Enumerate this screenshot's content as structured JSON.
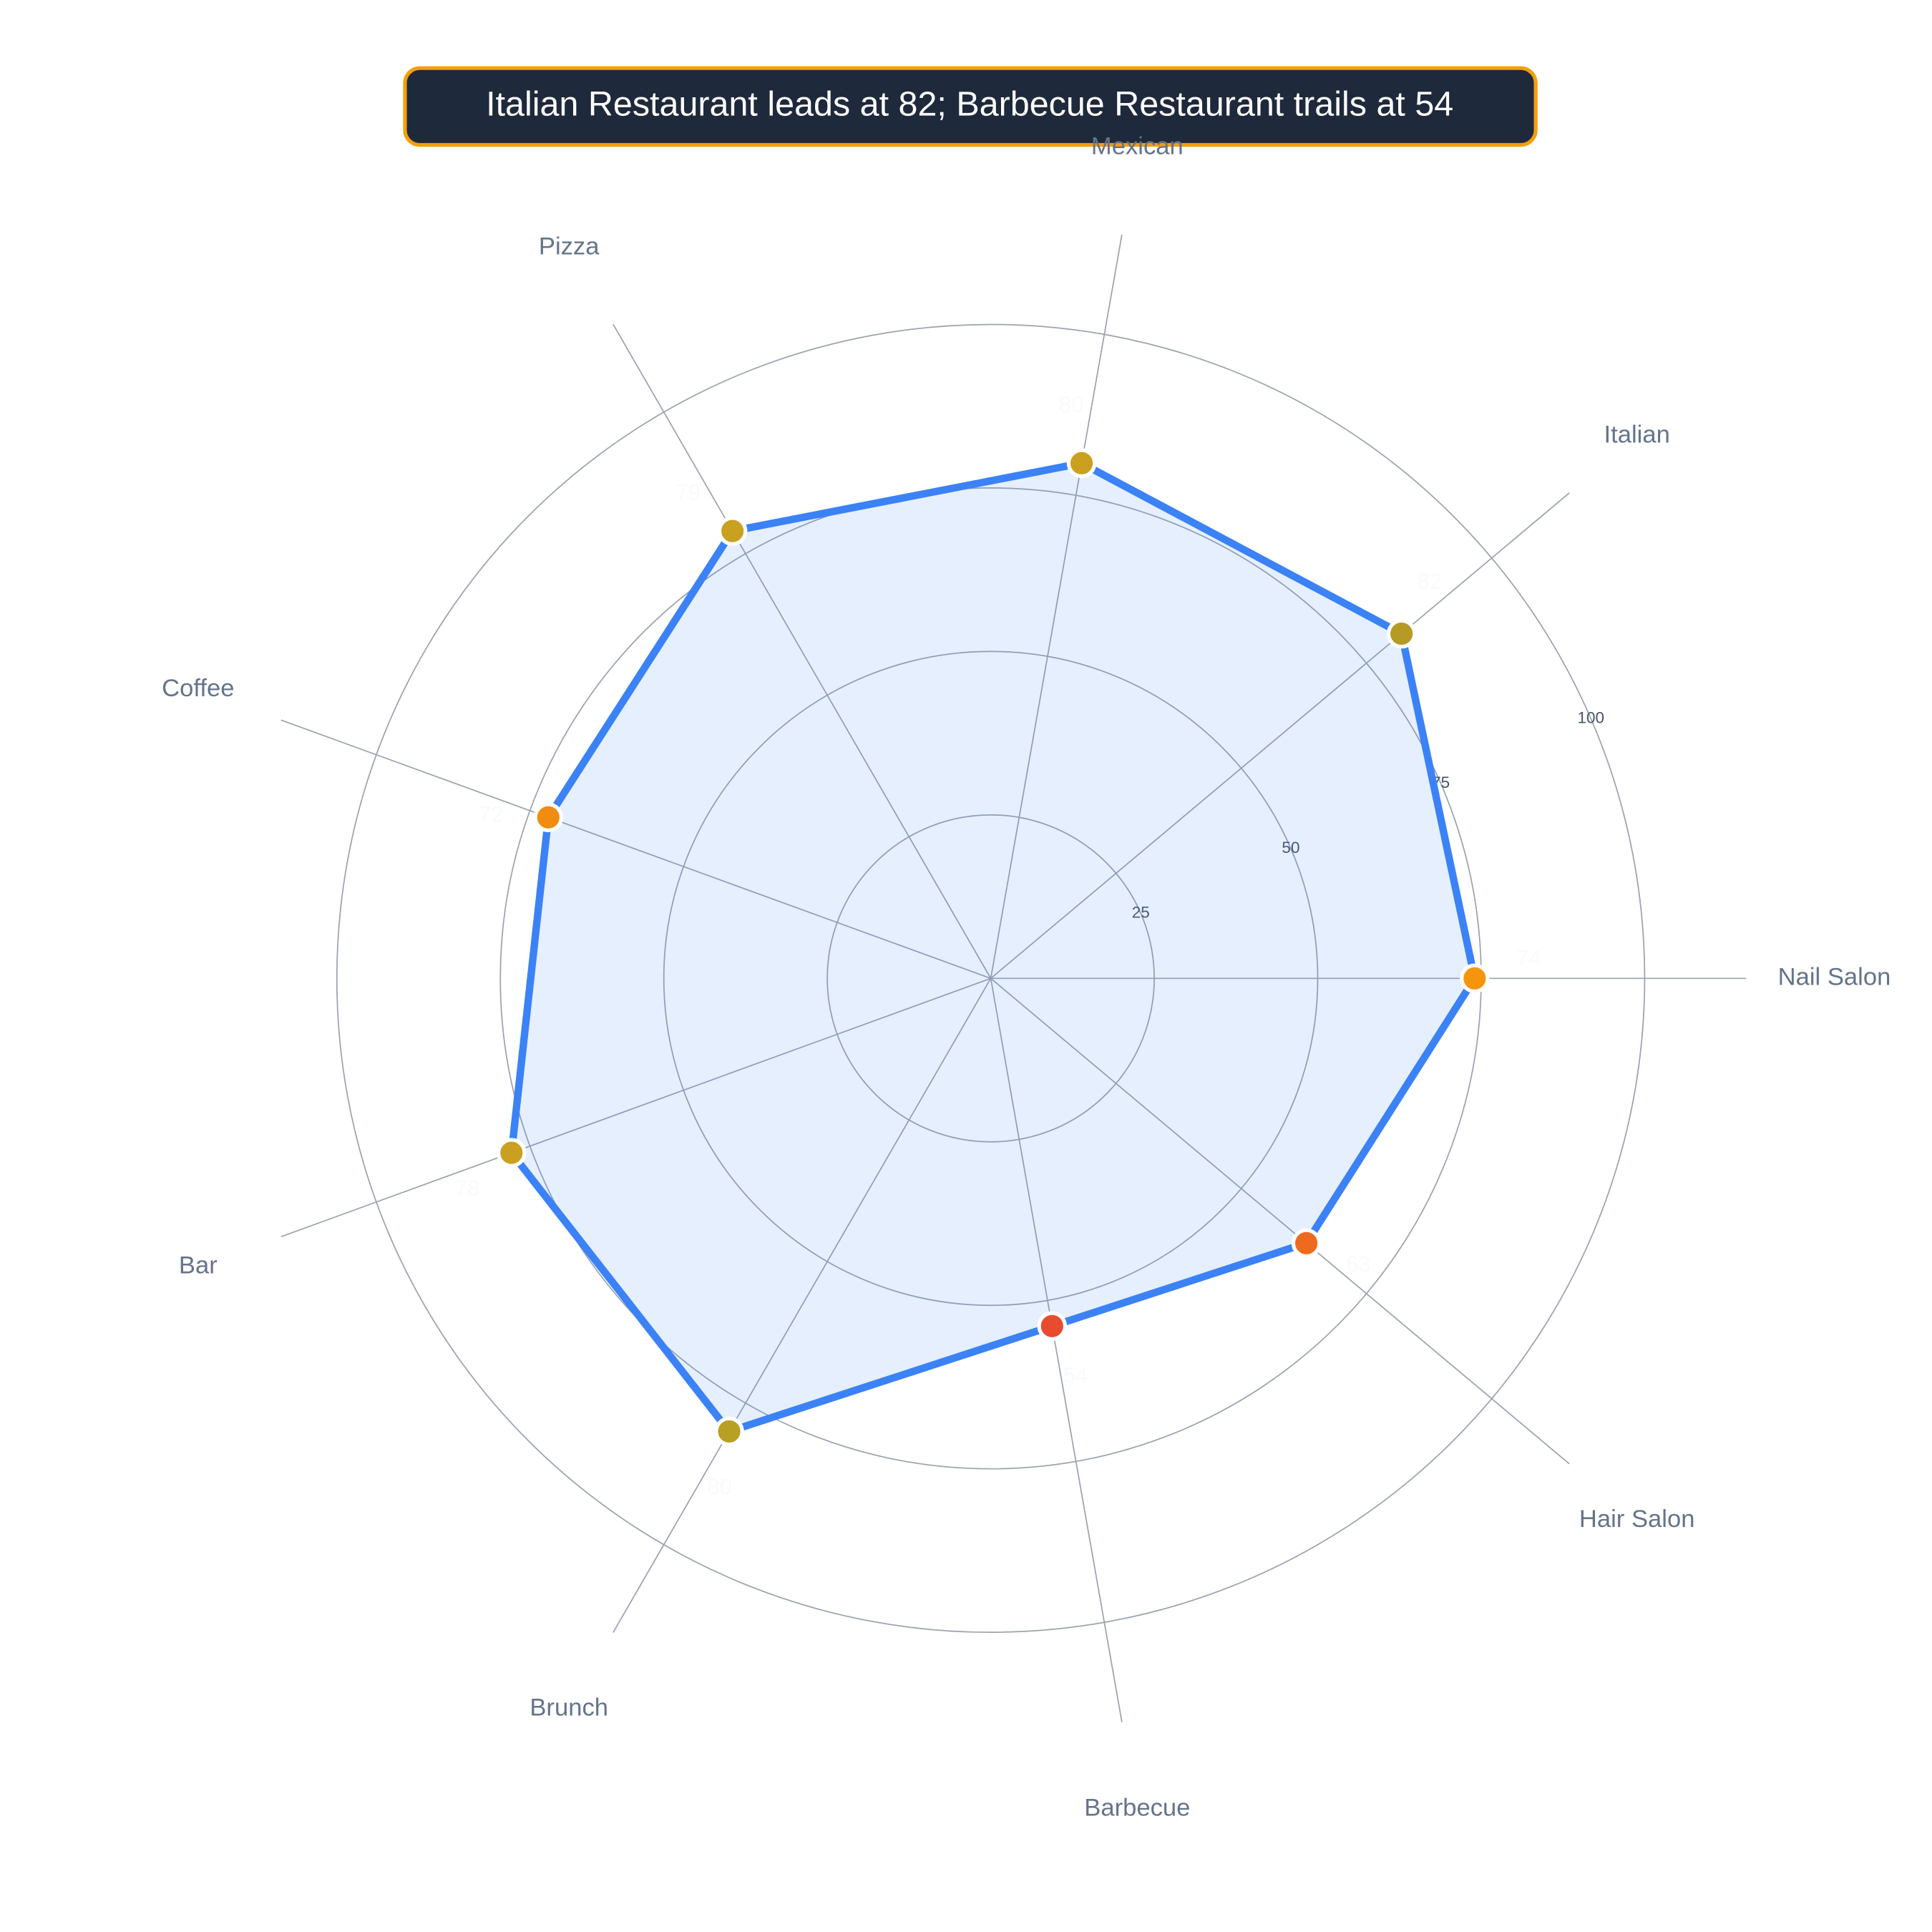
{
  "chart_data": {
    "type": "radar",
    "title": "Italian Restaurant leads at 82; Barbecue Restaurant trails at 54",
    "categories": [
      "Nail Salon",
      "Italian",
      "Mexican",
      "Pizza",
      "Coffee",
      "Bar",
      "Brunch",
      "Barbecue",
      "Hair Salon"
    ],
    "values": [
      74,
      82,
      80,
      79,
      72,
      78,
      80,
      54,
      63
    ],
    "color": "#3b82f6",
    "point_colors": [
      "#f5950f",
      "#b59a26",
      "#c9a020",
      "#c9a020",
      "#f08c0f",
      "#c9a020",
      "#b8a025",
      "#e84c30",
      "#ee6a1f"
    ],
    "rlim": [
      0,
      100
    ],
    "rticks": [
      25,
      50,
      75,
      100
    ],
    "grid": true
  }
}
